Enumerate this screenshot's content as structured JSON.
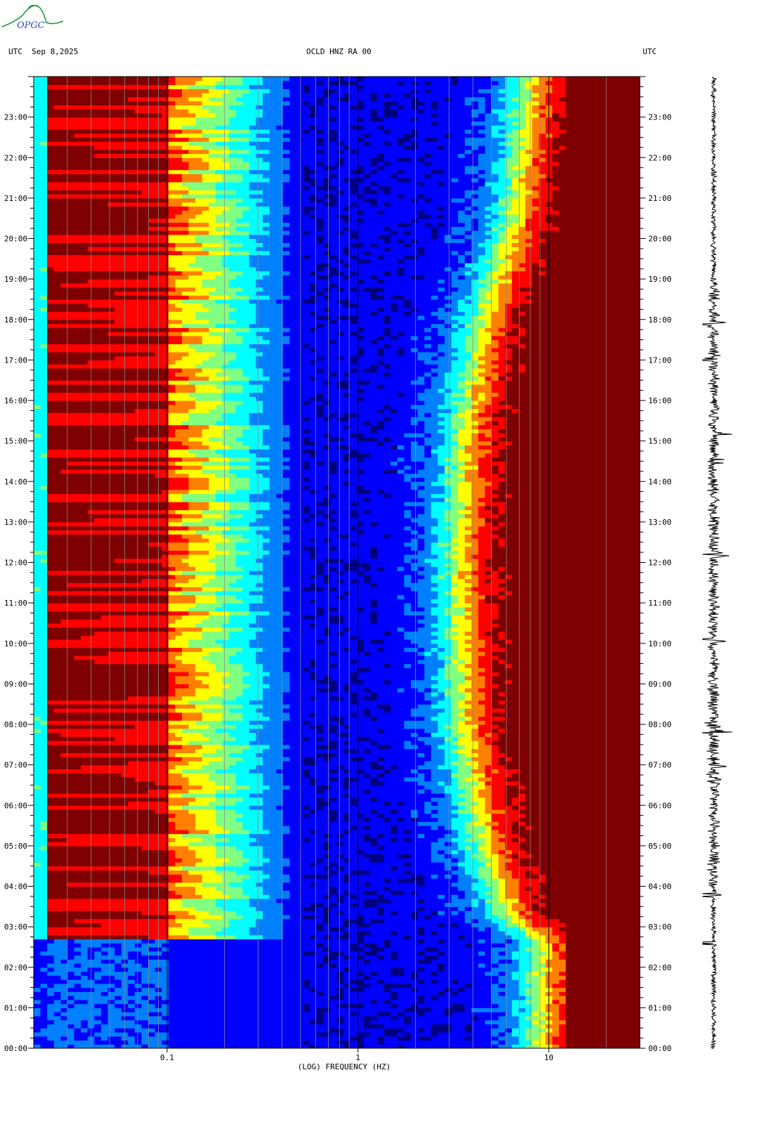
{
  "header": {
    "left": "UTC  Sep 8,2025",
    "center": "OCLD HNZ RA 00",
    "right": "UTC"
  },
  "logo": {
    "text": "OPGC",
    "color": "#1a9a3a",
    "text_color": "#2a4fb8"
  },
  "chart_data": {
    "type": "heatmap",
    "title": "OCLD HNZ RA 00",
    "date": "Sep 8,2025",
    "xlabel": "(LOG) FREQUENCY (HZ)",
    "x_scale": "log",
    "xlim": [
      0.02,
      30
    ],
    "x_ticks": [
      {
        "value": 0.1,
        "label": "0.1"
      },
      {
        "value": 1,
        "label": "1"
      },
      {
        "value": 10,
        "label": "10"
      }
    ],
    "ylabel": "UTC",
    "ylim_hours": [
      0,
      24
    ],
    "y_ticks": [
      "00:00",
      "01:00",
      "02:00",
      "03:00",
      "04:00",
      "05:00",
      "06:00",
      "07:00",
      "08:00",
      "09:00",
      "10:00",
      "11:00",
      "12:00",
      "13:00",
      "14:00",
      "15:00",
      "16:00",
      "17:00",
      "18:00",
      "19:00",
      "20:00",
      "21:00",
      "22:00",
      "23:00"
    ],
    "colormap": [
      "#00007f",
      "#0000ff",
      "#0080ff",
      "#00ffff",
      "#80ff80",
      "#ffff00",
      "#ff8000",
      "#ff0000",
      "#7f0000"
    ],
    "noise_edge_hz": [
      {
        "hour": 0,
        "hz": 9
      },
      {
        "hour": 2.7,
        "hz": 9
      },
      {
        "hour": 3.3,
        "hz": 6
      },
      {
        "hour": 5,
        "hz": 4.5
      },
      {
        "hour": 8,
        "hz": 3.5
      },
      {
        "hour": 12,
        "hz": 3.3
      },
      {
        "hour": 15.5,
        "hz": 3.6
      },
      {
        "hour": 18,
        "hz": 4.5
      },
      {
        "hour": 20.5,
        "hz": 6.5
      },
      {
        "hour": 24,
        "hz": 8
      }
    ],
    "microseism_active_hours": [
      2.7,
      24
    ],
    "seismogram_events_hours": [
      2.6,
      3.8,
      6.95,
      7.85,
      10.1,
      12.2,
      14.5,
      15.2,
      17.0,
      17.9
    ]
  }
}
